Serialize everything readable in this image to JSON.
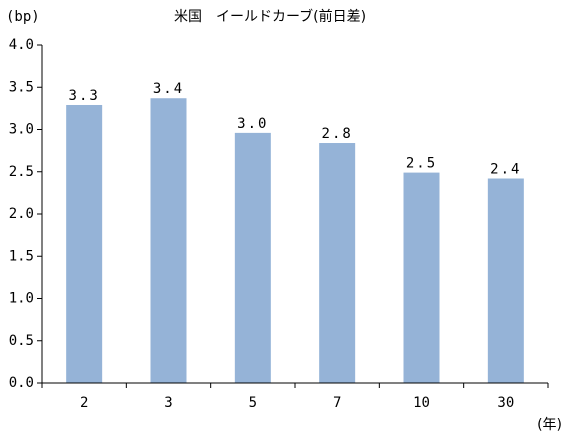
{
  "chart_data": {
    "type": "bar",
    "title": "米国　イールドカーブ(前日差)",
    "y_label": "(bp)",
    "x_label": "(年)",
    "categories": [
      "2",
      "3",
      "5",
      "7",
      "10",
      "30"
    ],
    "values": [
      3.29,
      3.37,
      2.96,
      2.84,
      2.49,
      2.42
    ],
    "value_labels": [
      "3.3",
      "3.4",
      "3.0",
      "2.8",
      "2.5",
      "2.4"
    ],
    "color": "#95b3d7",
    "ylim": [
      0,
      4
    ],
    "yticks": [
      {
        "value": 0,
        "label": "0.0"
      },
      {
        "value": 0.5,
        "label": "0.5"
      },
      {
        "value": 1,
        "label": "1.0"
      },
      {
        "value": 1.5,
        "label": "1.5"
      },
      {
        "value": 2,
        "label": "2.0"
      },
      {
        "value": 2.5,
        "label": "2.5"
      },
      {
        "value": 3,
        "label": "3.0"
      },
      {
        "value": 3.5,
        "label": "3.5"
      },
      {
        "value": 4,
        "label": "4.0"
      }
    ],
    "grid": false
  }
}
